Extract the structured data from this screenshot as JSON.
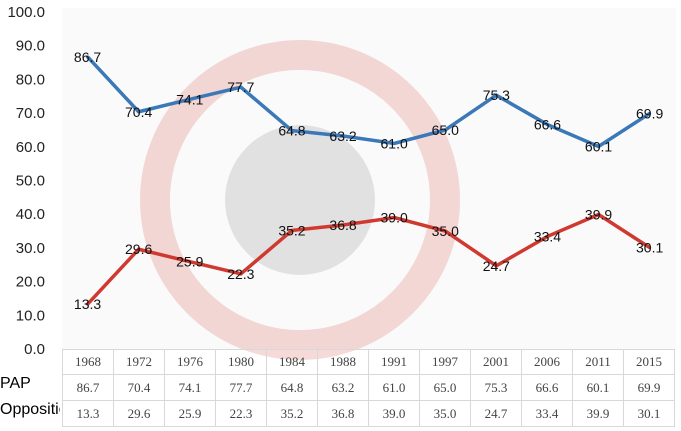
{
  "chart_data": {
    "type": "line",
    "categories": [
      "1968",
      "1972",
      "1976",
      "1980",
      "1984",
      "1988",
      "1991",
      "1997",
      "2001",
      "2006",
      "2011",
      "2015"
    ],
    "series": [
      {
        "name": "PAP",
        "color": "#3a78b8",
        "values": [
          86.7,
          70.4,
          74.1,
          77.7,
          64.8,
          63.2,
          61.0,
          65.0,
          75.3,
          66.6,
          60.1,
          69.9
        ]
      },
      {
        "name": "Opposition",
        "color": "#d0392f",
        "values": [
          13.3,
          29.6,
          25.9,
          22.3,
          35.2,
          36.8,
          39.0,
          35.0,
          24.7,
          33.4,
          39.9,
          30.1
        ]
      }
    ],
    "yticks": [
      "0.0",
      "10.0",
      "20.0",
      "30.0",
      "40.0",
      "50.0",
      "60.0",
      "70.0",
      "80.0",
      "90.0",
      "100.0"
    ],
    "ylim": [
      0,
      100
    ],
    "grid": false,
    "legend": "data table below chart"
  }
}
